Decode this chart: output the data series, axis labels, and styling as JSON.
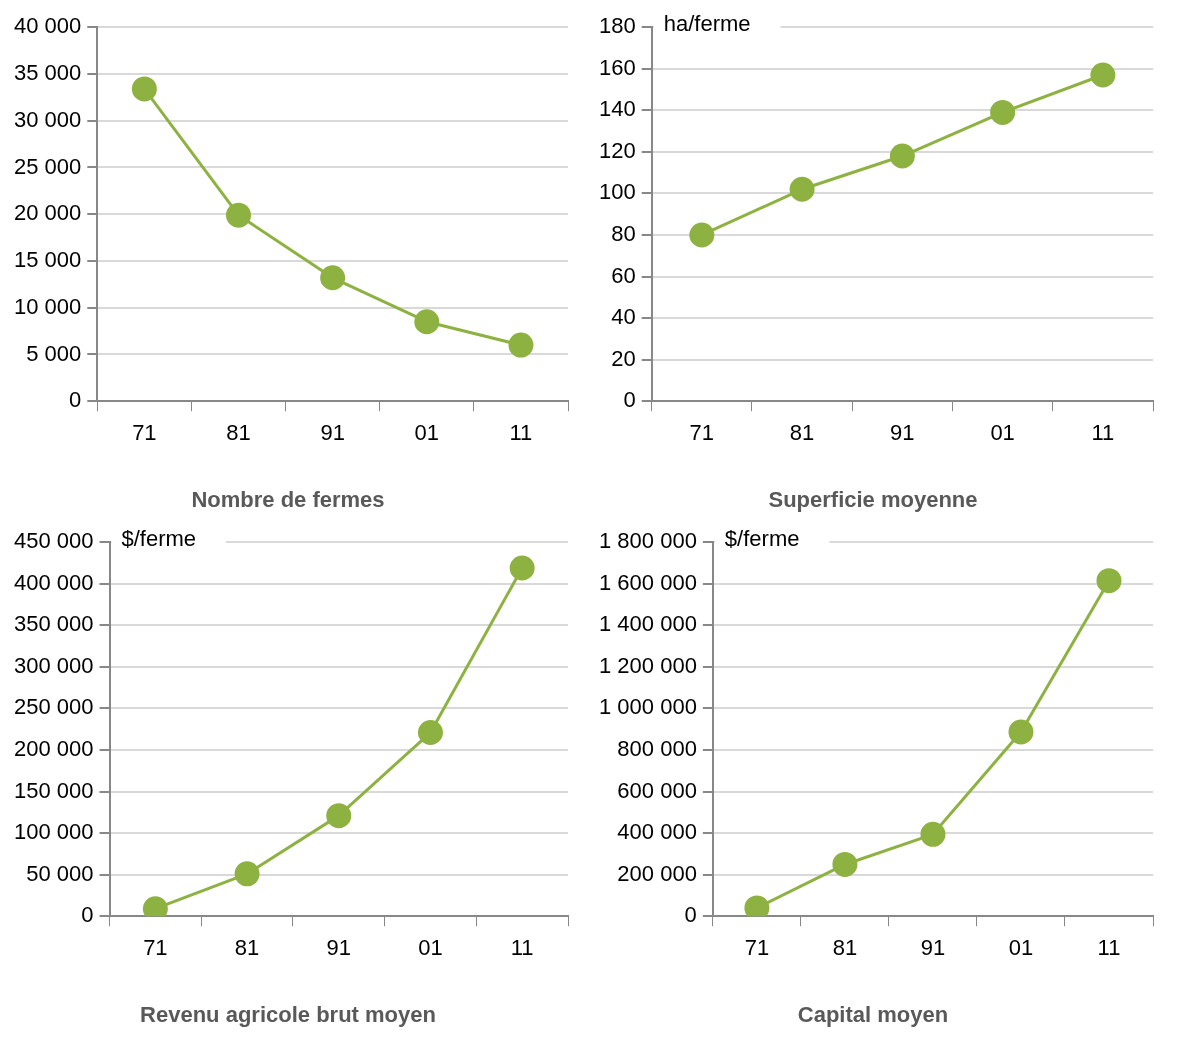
{
  "chart_data": [
    {
      "type": "line",
      "title": "Nombre de fermes",
      "categories": [
        "71",
        "81",
        "91",
        "01",
        "11"
      ],
      "series": [
        {
          "color": "#8db241",
          "values": [
            33400,
            19900,
            13200,
            8500,
            6000
          ]
        }
      ],
      "ylim": [
        0,
        40000
      ],
      "yticks": [
        0,
        {
          "value": 5000,
          "label": "5 000"
        },
        {
          "value": 10000,
          "label": "10 000"
        },
        {
          "value": 15000,
          "label": "15 000"
        },
        {
          "value": 20000,
          "label": "20 000"
        },
        {
          "value": 25000,
          "label": "25 000"
        },
        {
          "value": 30000,
          "label": "30 000"
        },
        {
          "value": 35000,
          "label": "35 000"
        },
        {
          "value": 40000,
          "label": "40 000"
        }
      ],
      "grid": "y",
      "legend": false,
      "marker": "circle",
      "line_style": "solid"
    },
    {
      "type": "line",
      "title": "Superficie moyenne",
      "ylabel": "ha/ferme",
      "categories": [
        "71",
        "81",
        "91",
        "01",
        "11"
      ],
      "series": [
        {
          "color": "#8db241",
          "values": [
            80,
            102,
            118,
            139,
            157
          ]
        }
      ],
      "ylim": [
        0,
        180
      ],
      "yticks": [
        0,
        20,
        40,
        60,
        80,
        100,
        120,
        140,
        160,
        180
      ],
      "grid": "y",
      "legend": false,
      "marker": "circle",
      "line_style": "solid"
    },
    {
      "type": "line",
      "title": "Revenu agricole brut moyen",
      "ylabel": "$/ferme",
      "categories": [
        "71",
        "81",
        "91",
        "01",
        "11"
      ],
      "series": [
        {
          "color": "#8db241",
          "values": [
            9000,
            51000,
            121000,
            221000,
            419000
          ]
        }
      ],
      "ylim": [
        0,
        450000
      ],
      "yticks": [
        0,
        {
          "value": 50000,
          "label": "50 000"
        },
        {
          "value": 100000,
          "label": "100 000"
        },
        {
          "value": 150000,
          "label": "150 000"
        },
        {
          "value": 200000,
          "label": "200 000"
        },
        {
          "value": 250000,
          "label": "250 000"
        },
        {
          "value": 300000,
          "label": "300 000"
        },
        {
          "value": 350000,
          "label": "350 000"
        },
        {
          "value": 400000,
          "label": "400 000"
        },
        {
          "value": 450000,
          "label": "450 000"
        }
      ],
      "grid": "y",
      "legend": false,
      "marker": "circle",
      "line_style": "solid"
    },
    {
      "type": "line",
      "title": "Capital moyen",
      "ylabel": "$/ferme",
      "categories": [
        "71",
        "81",
        "91",
        "01",
        "11"
      ],
      "series": [
        {
          "color": "#8db241",
          "values": [
            40000,
            249000,
            394000,
            887000,
            1615000
          ]
        }
      ],
      "ylim": [
        0,
        1800000
      ],
      "yticks": [
        0,
        {
          "value": 200000,
          "label": "200 000"
        },
        {
          "value": 400000,
          "label": "400 000"
        },
        {
          "value": 600000,
          "label": "600 000"
        },
        {
          "value": 800000,
          "label": "800 000"
        },
        {
          "value": 1000000,
          "label": "1 000 000"
        },
        {
          "value": 1200000,
          "label": "1 200 000"
        },
        {
          "value": 1400000,
          "label": "1 400 000"
        },
        {
          "value": 1600000,
          "label": "1 600 000"
        },
        {
          "value": 1800000,
          "label": "1 800 000"
        }
      ],
      "grid": "y",
      "legend": false,
      "marker": "circle",
      "line_style": "solid"
    }
  ]
}
